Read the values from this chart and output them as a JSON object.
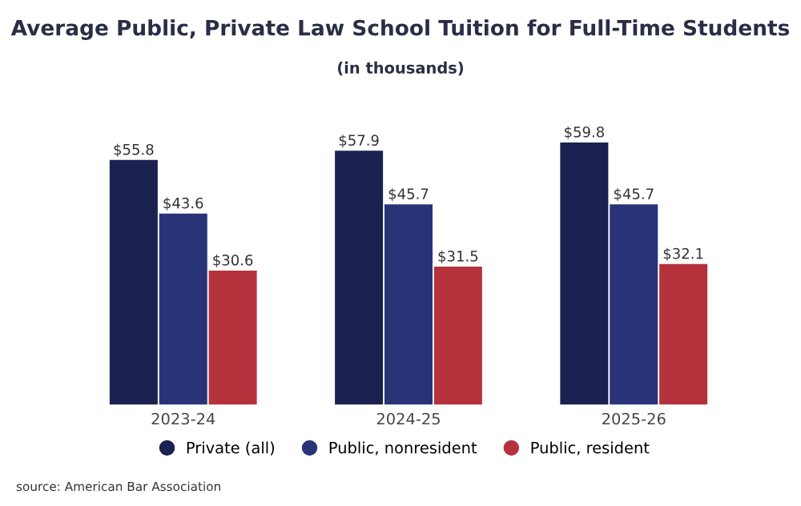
{
  "chart_data": {
    "type": "bar",
    "title": "Average Public, Private Law School Tuition for Full-Time Students",
    "subtitle": "(in thousands)",
    "categories": [
      "2023-24",
      "2024-25",
      "2025-26"
    ],
    "series": [
      {
        "name": "Private (all)",
        "color": "#1b2150",
        "values": [
          55.8,
          57.9,
          59.8
        ],
        "value_labels": [
          "$55.8",
          "$57.9",
          "$59.8"
        ]
      },
      {
        "name": "Public, nonresident",
        "color": "#283477",
        "values": [
          43.6,
          45.7,
          45.7
        ],
        "value_labels": [
          "$43.6",
          "$45.7",
          "$45.7"
        ]
      },
      {
        "name": "Public, resident",
        "color": "#b5323d",
        "values": [
          30.6,
          31.5,
          32.1
        ],
        "value_labels": [
          "$30.6",
          "$31.5",
          "$32.1"
        ]
      }
    ],
    "legend": "bottom",
    "grid": false,
    "annotations": [
      "source: American Bar Association"
    ]
  }
}
